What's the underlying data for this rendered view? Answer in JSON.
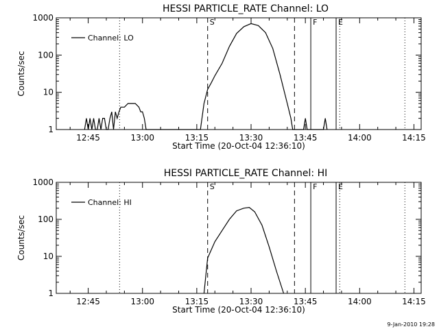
{
  "chart_data": [
    {
      "type": "line",
      "title": "HESSI PARTICLE_RATE Channel: LO",
      "xlabel": "Start Time (20-Oct-04 12:36:10)",
      "ylabel": "Counts/sec",
      "y_scale": "log",
      "ylim": [
        1,
        1000
      ],
      "xlim": [
        "12:36:10",
        "14:17:00"
      ],
      "grid": false,
      "legend_position": "top-left",
      "x_tick_labels": [
        "12:45",
        "13:00",
        "13:15",
        "13:30",
        "13:45",
        "14:00",
        "14:15"
      ],
      "y_tick_labels": [
        "1",
        "10",
        "100",
        "1000"
      ],
      "markers": [
        {
          "time": "12:53:40",
          "style": "dotted",
          "label": ""
        },
        {
          "time": "13:18:00",
          "style": "dashed",
          "label": "S"
        },
        {
          "time": "13:42:00",
          "style": "dashed",
          "label": ""
        },
        {
          "time": "13:46:30",
          "style": "solid",
          "label": "F"
        },
        {
          "time": "13:53:30",
          "style": "solid",
          "label": "E"
        },
        {
          "time": "13:54:30",
          "style": "dotted",
          "label": ""
        },
        {
          "time": "14:12:30",
          "style": "dotted",
          "label": ""
        }
      ],
      "series": [
        {
          "name": "Channel: LO",
          "x": [
            "12:44:00",
            "12:44:30",
            "12:45:00",
            "12:45:30",
            "12:46:00",
            "12:46:30",
            "12:47:00",
            "12:47:30",
            "12:48:00",
            "12:48:30",
            "12:49:00",
            "12:49:30",
            "12:50:00",
            "12:50:30",
            "12:51:00",
            "12:51:30",
            "12:52:00",
            "12:52:30",
            "12:53:00",
            "12:53:30",
            "12:54:00",
            "12:55:00",
            "12:56:00",
            "12:57:00",
            "12:58:00",
            "12:59:00",
            "12:59:30",
            "13:00:00",
            "13:00:30",
            "13:01:00",
            "13:01:30",
            "13:02:00",
            "13:16:00",
            "13:17:00",
            "13:18:00",
            "13:19:00",
            "13:20:00",
            "13:22:00",
            "13:24:00",
            "13:26:00",
            "13:28:00",
            "13:30:00",
            "13:32:00",
            "13:34:00",
            "13:36:00",
            "13:38:00",
            "13:40:00",
            "13:41:00",
            "13:41:30",
            "13:44:30",
            "13:45:00",
            "13:45:30",
            "13:50:00",
            "13:50:30",
            "13:51:00"
          ],
          "y": [
            1,
            2,
            1,
            2,
            1,
            2,
            1,
            1,
            2,
            1,
            2,
            2,
            1,
            1,
            2,
            3,
            1,
            3,
            2,
            3,
            4,
            4,
            5,
            5,
            5,
            4,
            3,
            3,
            2,
            1,
            1,
            1,
            1,
            5,
            12,
            18,
            28,
            60,
            170,
            380,
            580,
            700,
            620,
            400,
            150,
            30,
            5,
            2,
            1,
            1,
            2,
            1,
            1,
            2,
            1
          ]
        }
      ]
    },
    {
      "type": "line",
      "title": "HESSI PARTICLE_RATE Channel: HI",
      "xlabel": "Start Time (20-Oct-04 12:36:10)",
      "ylabel": "Counts/sec",
      "y_scale": "log",
      "ylim": [
        1,
        1000
      ],
      "xlim": [
        "12:36:10",
        "14:17:00"
      ],
      "grid": false,
      "legend_position": "top-left",
      "x_tick_labels": [
        "12:45",
        "13:00",
        "13:15",
        "13:30",
        "13:45",
        "14:00",
        "14:15"
      ],
      "y_tick_labels": [
        "1",
        "10",
        "100",
        "1000"
      ],
      "markers": [
        {
          "time": "12:53:40",
          "style": "dotted",
          "label": ""
        },
        {
          "time": "13:18:00",
          "style": "dashed",
          "label": "S"
        },
        {
          "time": "13:42:00",
          "style": "dashed",
          "label": ""
        },
        {
          "time": "13:46:30",
          "style": "solid",
          "label": "F"
        },
        {
          "time": "13:53:30",
          "style": "solid",
          "label": "E"
        },
        {
          "time": "13:54:30",
          "style": "dotted",
          "label": ""
        },
        {
          "time": "14:12:30",
          "style": "dotted",
          "label": ""
        }
      ],
      "series": [
        {
          "name": "Channel: HI",
          "x": [
            "13:17:00",
            "13:18:00",
            "13:19:00",
            "13:20:00",
            "13:22:00",
            "13:24:00",
            "13:26:00",
            "13:28:00",
            "13:29:30",
            "13:31:00",
            "13:33:00",
            "13:35:00",
            "13:37:00",
            "13:39:00"
          ],
          "y": [
            1,
            9,
            15,
            25,
            50,
            100,
            170,
            200,
            210,
            160,
            70,
            18,
            4,
            1
          ]
        }
      ]
    }
  ],
  "footer": {
    "date_stamp": "9-Jan-2010 19:28"
  }
}
